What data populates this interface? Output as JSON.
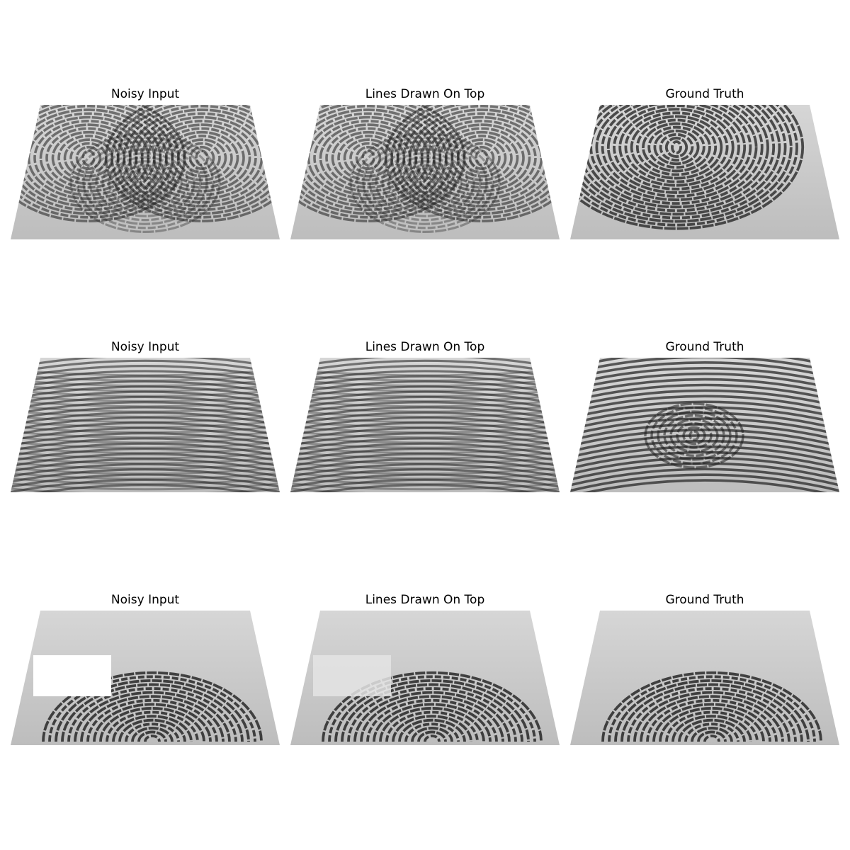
{
  "figure": {
    "rows": [
      {
        "panels": [
          {
            "title": "Noisy Input",
            "kind": "noisy",
            "pattern": "double-loop-interference",
            "occlusion": "none"
          },
          {
            "title": "Lines Drawn On Top",
            "kind": "restored",
            "pattern": "double-loop-interference",
            "occlusion": "none"
          },
          {
            "title": "Ground Truth",
            "kind": "truth",
            "pattern": "loop",
            "occlusion": "none"
          }
        ]
      },
      {
        "panels": [
          {
            "title": "Noisy Input",
            "kind": "noisy",
            "pattern": "arch-interference",
            "occlusion": "none"
          },
          {
            "title": "Lines Drawn On Top",
            "kind": "restored",
            "pattern": "arch-interference",
            "occlusion": "none"
          },
          {
            "title": "Ground Truth",
            "kind": "truth",
            "pattern": "arch-loop",
            "occlusion": "none"
          }
        ]
      },
      {
        "panels": [
          {
            "title": "Noisy Input",
            "kind": "noisy",
            "pattern": "partial-loop",
            "occlusion": "white-box"
          },
          {
            "title": "Lines Drawn On Top",
            "kind": "restored",
            "pattern": "partial-loop",
            "occlusion": "faint-box"
          },
          {
            "title": "Ground Truth",
            "kind": "truth",
            "pattern": "partial-loop",
            "occlusion": "none"
          }
        ]
      }
    ]
  },
  "colors": {
    "background": "#ffffff",
    "paper": "#c8c8c8",
    "ridge": "#1e1e1e",
    "title": "#000000"
  }
}
